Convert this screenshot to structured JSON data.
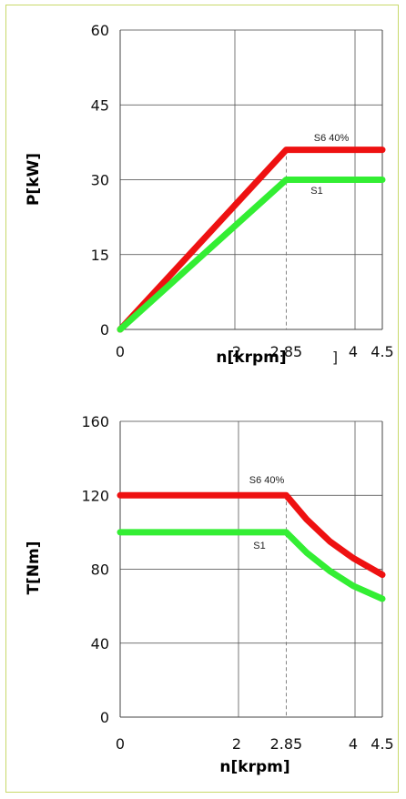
{
  "chart_data": [
    {
      "type": "line",
      "ylabel": "P[kW]",
      "xlabel": "n[krpm]",
      "stray_label": "]",
      "xlim": [
        0,
        4.5
      ],
      "ylim": [
        0,
        60
      ],
      "x_ticks": [
        "0",
        "2",
        "2.85",
        "4",
        "4.5"
      ],
      "y_ticks": [
        "0",
        "15",
        "30",
        "45",
        "60"
      ],
      "grid": true,
      "series": [
        {
          "name": "S6 40%",
          "color": "#ee1111",
          "points": [
            [
              0,
              0
            ],
            [
              2.85,
              36
            ],
            [
              4.5,
              36
            ]
          ]
        },
        {
          "name": "S1",
          "color": "#33ee33",
          "points": [
            [
              0,
              0
            ],
            [
              2.85,
              30
            ],
            [
              4.5,
              30
            ]
          ]
        }
      ]
    },
    {
      "type": "line",
      "ylabel": "T[Nm]",
      "xlabel": "n[krpm]",
      "xlim": [
        0,
        4.5
      ],
      "ylim": [
        0,
        160
      ],
      "x_ticks": [
        "0",
        "2",
        "2.85",
        "4",
        "4.5"
      ],
      "y_ticks": [
        "0",
        "40",
        "80",
        "120",
        "160"
      ],
      "grid": true,
      "series": [
        {
          "name": "S6 40%",
          "color": "#ee1111",
          "points": [
            [
              0,
              120
            ],
            [
              2.85,
              120
            ],
            [
              3.2,
              107
            ],
            [
              3.6,
              95
            ],
            [
              4.0,
              86
            ],
            [
              4.5,
              77
            ]
          ]
        },
        {
          "name": "S1",
          "color": "#33ee33",
          "points": [
            [
              0,
              100
            ],
            [
              2.85,
              100
            ],
            [
              3.2,
              89
            ],
            [
              3.6,
              79
            ],
            [
              4.0,
              71
            ],
            [
              4.5,
              64
            ]
          ]
        }
      ]
    }
  ]
}
